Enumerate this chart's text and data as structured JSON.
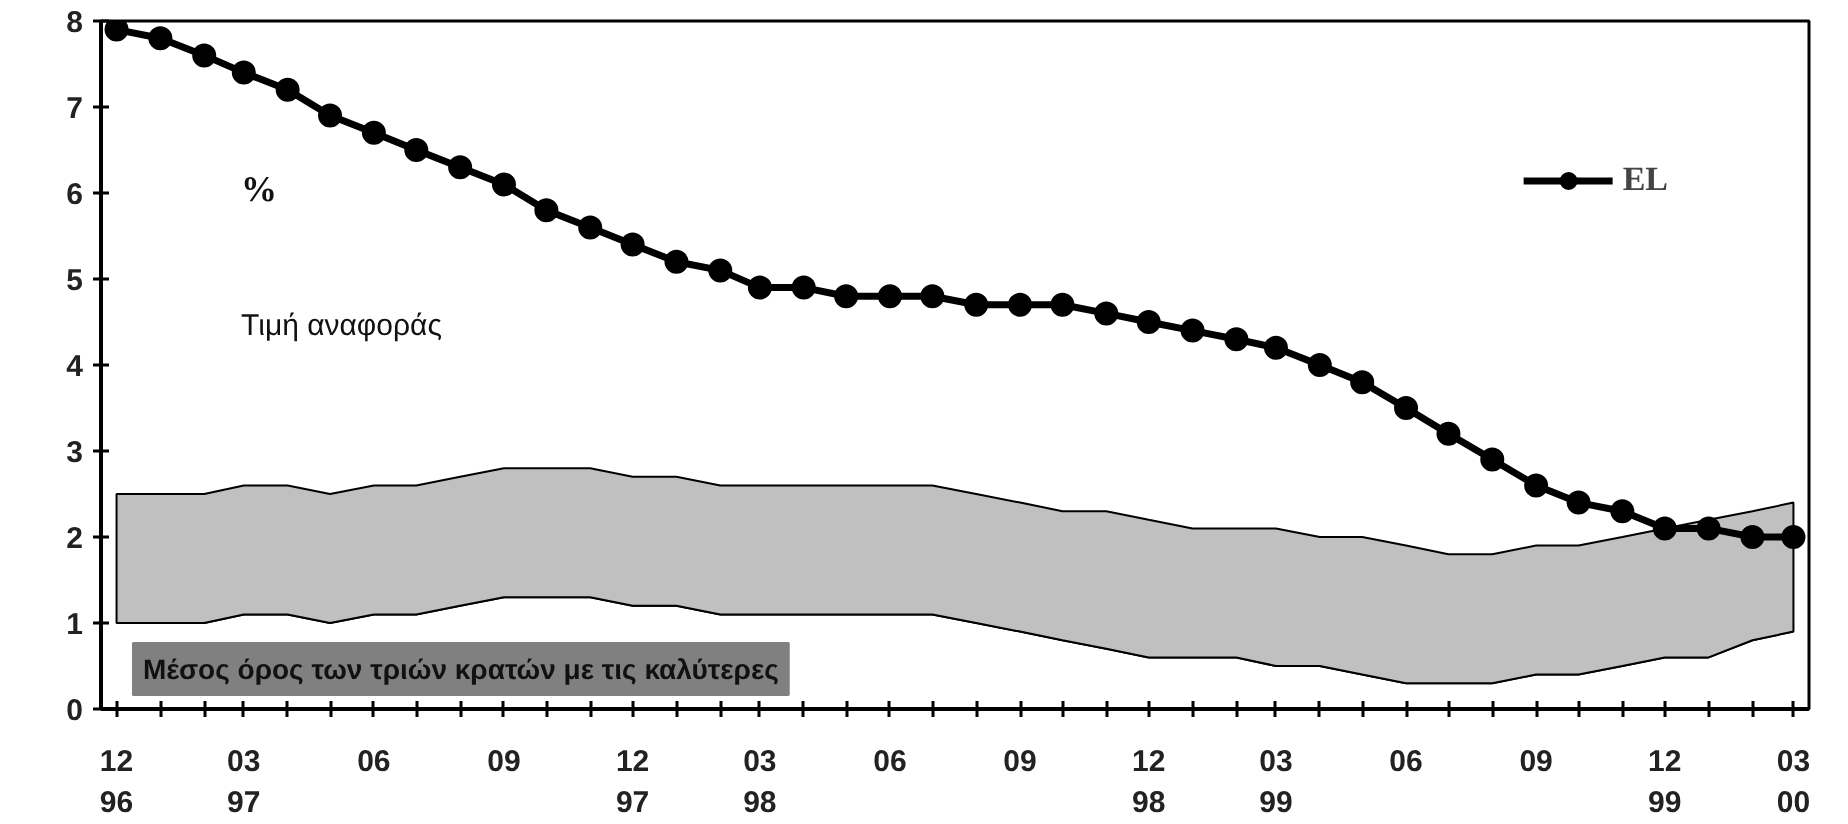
{
  "chart_data": {
    "type": "line",
    "x": [
      "1996-12",
      "1997-01",
      "1997-02",
      "1997-03",
      "1997-04",
      "1997-05",
      "1997-06",
      "1997-07",
      "1997-08",
      "1997-09",
      "1997-10",
      "1997-11",
      "1997-12",
      "1998-01",
      "1998-02",
      "1998-03",
      "1998-04",
      "1998-05",
      "1998-06",
      "1998-07",
      "1998-08",
      "1998-09",
      "1998-10",
      "1998-11",
      "1998-12",
      "1999-01",
      "1999-02",
      "1999-03",
      "1999-04",
      "1999-05",
      "1999-06",
      "1999-07",
      "1999-08",
      "1999-09",
      "1999-10",
      "1999-11",
      "1999-12",
      "2000-01",
      "2000-02",
      "2000-03"
    ],
    "series": [
      {
        "type": "area",
        "color": "#ffffff",
        "values": [
          1.0,
          1.0,
          1.0,
          1.1,
          1.1,
          1.0,
          1.1,
          1.1,
          1.2,
          1.3,
          1.3,
          1.3,
          1.2,
          1.2,
          1.1,
          1.1,
          1.1,
          1.1,
          1.1,
          1.1,
          1.0,
          0.9,
          0.8,
          0.7,
          0.6,
          0.6,
          0.6,
          0.5,
          0.5,
          0.4,
          0.3,
          0.3,
          0.3,
          0.4,
          0.4,
          0.5,
          0.6,
          0.6,
          0.8,
          0.9
        ]
      },
      {
        "type": "area",
        "color": "#c0c0c0",
        "values": [
          1.5,
          1.5,
          1.5,
          1.5,
          1.5,
          1.5,
          1.5,
          1.5,
          1.5,
          1.5,
          1.5,
          1.5,
          1.5,
          1.5,
          1.5,
          1.5,
          1.5,
          1.5,
          1.5,
          1.5,
          1.5,
          1.5,
          1.5,
          1.6,
          1.6,
          1.5,
          1.5,
          1.6,
          1.5,
          1.6,
          1.6,
          1.5,
          1.5,
          1.5,
          1.5,
          1.5,
          1.5,
          1.6,
          1.5,
          1.5
        ]
      },
      {
        "name": "EL",
        "color": "#000000",
        "marker": "circle",
        "values": [
          7.9,
          7.8,
          7.6,
          7.4,
          7.2,
          6.9,
          6.7,
          6.5,
          6.3,
          6.1,
          5.8,
          5.6,
          5.4,
          5.2,
          5.1,
          4.9,
          4.9,
          4.8,
          4.8,
          4.8,
          4.7,
          4.7,
          4.7,
          4.6,
          4.5,
          4.4,
          4.3,
          4.2,
          4.0,
          3.8,
          3.5,
          3.2,
          2.9,
          2.6,
          2.4,
          2.3,
          2.1,
          2.1,
          2.0,
          2.0
        ]
      }
    ],
    "stacked": true,
    "ylim": [
      0,
      8
    ],
    "yticks": [
      0,
      1,
      2,
      3,
      4,
      5,
      6,
      7,
      8
    ],
    "xlim": [
      "1996-11-20",
      "2000-03-12"
    ],
    "xticks": [
      {
        "value": "1996-12",
        "label": "12\n96"
      },
      {
        "value": "1997-01",
        "label": null
      },
      {
        "value": "1997-02",
        "label": null
      },
      {
        "value": "1997-03",
        "label": "03\n97"
      },
      {
        "value": "1997-04",
        "label": null
      },
      {
        "value": "1997-05",
        "label": null
      },
      {
        "value": "1997-06",
        "label": "06"
      },
      {
        "value": "1997-07",
        "label": null
      },
      {
        "value": "1997-08",
        "label": null
      },
      {
        "value": "1997-09",
        "label": "09"
      },
      {
        "value": "1997-10",
        "label": null
      },
      {
        "value": "1997-11",
        "label": null
      },
      {
        "value": "1997-12",
        "label": "12\n97"
      },
      {
        "value": "1998-01",
        "label": null
      },
      {
        "value": "1998-02",
        "label": null
      },
      {
        "value": "1998-03",
        "label": "03\n98"
      },
      {
        "value": "1998-04",
        "label": null
      },
      {
        "value": "1998-05",
        "label": null
      },
      {
        "value": "1998-06",
        "label": "06"
      },
      {
        "value": "1998-07",
        "label": null
      },
      {
        "value": "1998-08",
        "label": null
      },
      {
        "value": "1998-09",
        "label": "09"
      },
      {
        "value": "1998-10",
        "label": null
      },
      {
        "value": "1998-11",
        "label": null
      },
      {
        "value": "1998-12",
        "label": "12\n98"
      },
      {
        "value": "1999-01",
        "label": null
      },
      {
        "value": "1999-02",
        "label": null
      },
      {
        "value": "1999-03",
        "label": "03\n99"
      },
      {
        "value": "1999-04",
        "label": null
      },
      {
        "value": "1999-05",
        "label": null
      },
      {
        "value": "1999-06",
        "label": "06"
      },
      {
        "value": "1999-07",
        "label": null
      },
      {
        "value": "1999-08",
        "label": null
      },
      {
        "value": "1999-09",
        "label": "09"
      },
      {
        "value": "1999-10",
        "label": null
      },
      {
        "value": "1999-11",
        "label": null
      },
      {
        "value": "1999-12",
        "label": "12\n99"
      },
      {
        "value": "2000-01",
        "label": null
      },
      {
        "value": "2000-02",
        "label": null
      },
      {
        "value": "2000-03",
        "label": "03\n00"
      }
    ],
    "annotations": [
      "%",
      "Τιμή αναφοράς",
      "Μέσος όρος των τριών κρατών με τις καλύτερες"
    ],
    "line_style": "solid",
    "grid": false,
    "legend": "top right"
  }
}
